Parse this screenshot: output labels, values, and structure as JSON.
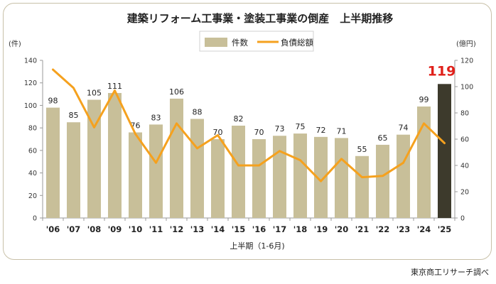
{
  "chart_data": {
    "type": "bar",
    "title": "建築リフォーム工事業・塗装工事業の倒産　上半期推移",
    "categories": [
      "'06",
      "'07",
      "'08",
      "'09",
      "'10",
      "'11",
      "'12",
      "'13",
      "'14",
      "'15",
      "'16",
      "'17",
      "'18",
      "'19",
      "'20",
      "'21",
      "'22",
      "'23",
      "'24",
      "'25"
    ],
    "series": [
      {
        "name": "件数",
        "type": "bar",
        "axis": "left",
        "color": "#c8bf99",
        "values": [
          98,
          85,
          105,
          111,
          76,
          83,
          106,
          88,
          70,
          82,
          70,
          73,
          75,
          72,
          71,
          55,
          65,
          74,
          99,
          119
        ]
      },
      {
        "name": "負債総額",
        "type": "line",
        "axis": "right",
        "color": "#f5a11e",
        "values": [
          113,
          99,
          69,
          97,
          64,
          42,
          72,
          53,
          63,
          40,
          40,
          51,
          44,
          28,
          45,
          31,
          32,
          42,
          72,
          57
        ]
      }
    ],
    "highlight": {
      "index": 19,
      "bar_color": "#3d3a2c",
      "label_color": "#e0201a"
    },
    "bar_color": "#c8bf99",
    "xlabel": "上半期（1-6月)",
    "ylabel_left": "(件)",
    "ylabel_right": "(億円)",
    "ylim_left": [
      0,
      140
    ],
    "ylim_right": [
      0,
      120
    ],
    "yticks_left": [
      0,
      20,
      40,
      60,
      80,
      100,
      120,
      140
    ],
    "yticks_right": [
      0,
      20,
      40,
      60,
      80,
      100,
      120
    ],
    "legend_position": "top-center",
    "grid": false
  },
  "source": "東京商工リサーチ調べ"
}
